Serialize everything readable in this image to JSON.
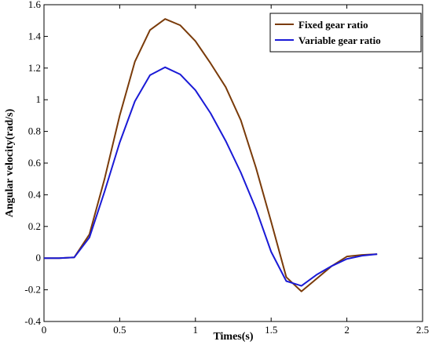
{
  "chart_data": {
    "type": "line",
    "xlabel": "Times(s)",
    "ylabel": "Angular velocity(rad/s)",
    "xlim": [
      0,
      2.5
    ],
    "ylim": [
      -0.4,
      1.6
    ],
    "xticks": [
      0,
      0.5,
      1,
      1.5,
      2,
      2.5
    ],
    "xtick_labels": [
      "0",
      "0.5",
      "1",
      "1.5",
      "2",
      "2.5"
    ],
    "yticks": [
      -0.4,
      -0.2,
      0,
      0.2,
      0.4,
      0.6,
      0.8,
      1.0,
      1.2,
      1.4,
      1.6
    ],
    "ytick_labels": [
      "-0.4",
      "-0.2",
      "0",
      "0.2",
      "0.4",
      "0.6",
      "0.8",
      "1",
      "1.2",
      "1.4",
      "1.6"
    ],
    "grid": false,
    "legend_position": "top-right",
    "series": [
      {
        "name": "Fixed gear ratio",
        "color": "#7a3b0a",
        "x": [
          0,
          0.1,
          0.2,
          0.3,
          0.4,
          0.5,
          0.6,
          0.7,
          0.8,
          0.9,
          1.0,
          1.1,
          1.2,
          1.3,
          1.4,
          1.5,
          1.6,
          1.7,
          1.8,
          1.9,
          2.0,
          2.1,
          2.2
        ],
        "y": [
          0,
          0,
          0.005,
          0.15,
          0.5,
          0.9,
          1.24,
          1.44,
          1.51,
          1.47,
          1.37,
          1.23,
          1.08,
          0.87,
          0.57,
          0.23,
          -0.12,
          -0.21,
          -0.13,
          -0.05,
          0.01,
          0.02,
          0.025
        ]
      },
      {
        "name": "Variable gear ratio",
        "color": "#1a1ad6",
        "x": [
          0,
          0.1,
          0.2,
          0.3,
          0.4,
          0.5,
          0.6,
          0.7,
          0.8,
          0.9,
          1.0,
          1.1,
          1.2,
          1.3,
          1.4,
          1.5,
          1.6,
          1.7,
          1.8,
          1.9,
          2.0,
          2.1,
          2.2
        ],
        "y": [
          0,
          0,
          0.005,
          0.13,
          0.42,
          0.73,
          0.99,
          1.155,
          1.205,
          1.16,
          1.06,
          0.915,
          0.74,
          0.54,
          0.31,
          0.04,
          -0.145,
          -0.175,
          -0.105,
          -0.05,
          -0.005,
          0.015,
          0.025
        ]
      }
    ]
  }
}
